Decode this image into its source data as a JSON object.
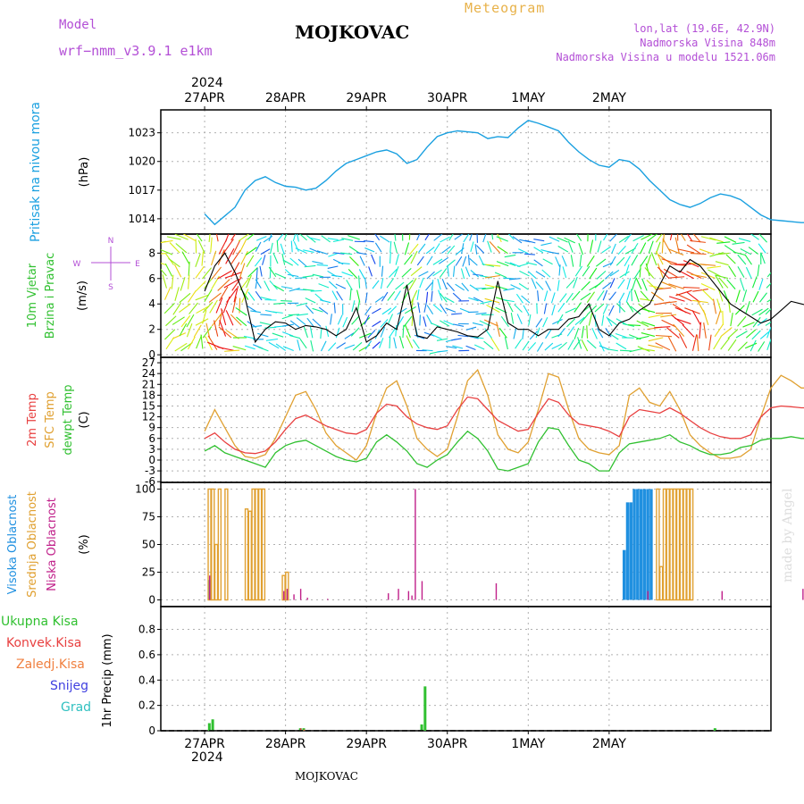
{
  "header": {
    "model_label": "Model",
    "model_name": "wrf−nmm_v3.9.1 e1km",
    "title": "MOJKOVAC",
    "subtitle": "Meteogram",
    "coords": "lon,lat (19.6E, 42.9N)",
    "altitude": "Nadmorska Visina 848m",
    "model_altitude": "Nadmorska Visina u modelu 1521.06m",
    "year": "2024",
    "bottom_title": "MOJKOVAC",
    "credit": "made by Angel"
  },
  "colors": {
    "pressure": "#1aa0e0",
    "wind_speed": "#000000",
    "temp2m": "#e84040",
    "sfc_temp": "#e0a030",
    "dewpoint": "#30c030",
    "cloud_high": "#2090e0",
    "cloud_mid": "#e0a030",
    "cloud_low": "#c0208a",
    "precip_total": "#30c030",
    "precip_conv": "#e84040",
    "precip_frozen": "#f08040",
    "snow": "#4040e0",
    "hail": "#30c0c0"
  },
  "chart_data": [
    {
      "type": "line",
      "panel": "pressure",
      "ylabel": "Pritisak na nivou mora",
      "unit": "(hPa)",
      "ylim": [
        1012.4,
        1025.4
      ],
      "yticks": [
        1014,
        1017,
        1020,
        1023
      ],
      "grid": true,
      "categories": [
        "27APR",
        "28APR",
        "29APR",
        "30APR",
        "1MAY",
        "2MAY"
      ],
      "x": [
        0,
        3,
        6,
        9,
        12,
        15,
        18,
        21,
        24,
        27,
        30,
        33,
        36,
        39,
        42,
        45,
        48,
        51,
        54,
        57,
        60,
        63,
        66,
        69,
        72,
        75,
        78,
        81,
        84,
        87,
        90,
        93,
        96,
        99,
        102,
        105,
        108,
        111,
        114,
        117,
        120,
        123,
        126,
        129,
        132,
        135,
        138,
        141,
        144,
        147,
        150,
        153,
        156,
        159,
        162,
        165,
        168,
        171,
        174,
        177,
        180
      ],
      "values": [
        1014.5,
        1013.4,
        1014.3,
        1015.2,
        1017.0,
        1018.0,
        1018.4,
        1017.8,
        1017.4,
        1017.3,
        1017.0,
        1017.2,
        1018.0,
        1019.0,
        1019.8,
        1020.2,
        1020.6,
        1021.0,
        1021.2,
        1020.8,
        1019.8,
        1020.2,
        1021.5,
        1022.6,
        1023.0,
        1023.2,
        1023.1,
        1023.0,
        1022.4,
        1022.6,
        1022.5,
        1023.5,
        1024.3,
        1024.0,
        1023.6,
        1023.2,
        1022.0,
        1021.0,
        1020.2,
        1019.6,
        1019.4,
        1020.2,
        1020.0,
        1019.2,
        1018.0,
        1017.0,
        1016.0,
        1015.5,
        1015.2,
        1015.6,
        1016.2,
        1016.6,
        1016.4,
        1016.0,
        1015.2,
        1014.4,
        1013.9,
        1013.8,
        1013.7,
        1013.6,
        1013.6
      ]
    },
    {
      "type": "line",
      "panel": "wind",
      "ylabel": "10m Vjetar Brzina i Pravac",
      "unit": "(m/s)",
      "compass": {
        "n": "N",
        "s": "S",
        "w": "W",
        "e": "E"
      },
      "ylim": [
        -0.2,
        9.5
      ],
      "yticks": [
        0,
        2,
        4,
        6,
        8
      ],
      "grid": true,
      "x": [
        0,
        3,
        6,
        9,
        12,
        15,
        18,
        21,
        24,
        27,
        30,
        33,
        36,
        39,
        42,
        45,
        48,
        51,
        54,
        57,
        60,
        63,
        66,
        69,
        72,
        75,
        78,
        81,
        84,
        87,
        90,
        93,
        96,
        99,
        102,
        105,
        108,
        111,
        114,
        117,
        120,
        123,
        126,
        129,
        132,
        135,
        138,
        141,
        144,
        147,
        150,
        153,
        156,
        159,
        162,
        165,
        168,
        171,
        174,
        177,
        180
      ],
      "values": [
        5.0,
        7.0,
        8.0,
        6.5,
        4.5,
        1.0,
        2.0,
        2.6,
        2.5,
        2.0,
        2.3,
        2.2,
        2.0,
        1.5,
        2.0,
        3.7,
        1.0,
        1.5,
        2.5,
        2.0,
        5.5,
        1.5,
        1.3,
        2.2,
        2.0,
        1.8,
        1.5,
        1.4,
        2.0,
        5.8,
        2.5,
        2.0,
        2.0,
        1.5,
        2.0,
        2.0,
        2.8,
        3.0,
        4.0,
        2.0,
        1.5,
        2.5,
        2.8,
        3.5,
        4.0,
        5.5,
        7.0,
        6.5,
        7.5,
        7.0,
        6.0,
        5.0,
        4.0,
        3.5,
        3.0,
        2.5,
        2.8,
        3.5,
        4.2,
        4.0,
        3.8
      ]
    },
    {
      "type": "line",
      "panel": "temperature",
      "ylabels": [
        "2m Temp",
        "SFC Temp",
        "dewpt Temp"
      ],
      "unit": "(C)",
      "ylim": [
        -6.2,
        28.5
      ],
      "yticks": [
        -6,
        -3,
        0,
        3,
        6,
        9,
        12,
        15,
        18,
        21,
        24,
        27
      ],
      "grid": true,
      "x": [
        0,
        3,
        6,
        9,
        12,
        15,
        18,
        21,
        24,
        27,
        30,
        33,
        36,
        39,
        42,
        45,
        48,
        51,
        54,
        57,
        60,
        63,
        66,
        69,
        72,
        75,
        78,
        81,
        84,
        87,
        90,
        93,
        96,
        99,
        102,
        105,
        108,
        111,
        114,
        117,
        120,
        123,
        126,
        129,
        132,
        135,
        138,
        141,
        144,
        147,
        150,
        153,
        156,
        159,
        162,
        165,
        168,
        171,
        174,
        177,
        180
      ],
      "series": [
        {
          "name": "2m Temp",
          "values": [
            6.0,
            7.5,
            5.0,
            3.0,
            2.0,
            1.8,
            2.5,
            5.0,
            8.5,
            11.5,
            12.5,
            11.0,
            9.5,
            8.5,
            7.5,
            7.2,
            8.5,
            13.0,
            15.5,
            15.0,
            12.0,
            10.0,
            9.0,
            8.5,
            9.5,
            14.0,
            17.5,
            17.0,
            14.0,
            11.0,
            9.5,
            8.0,
            8.5,
            13.0,
            17.0,
            16.0,
            12.5,
            10.0,
            9.5,
            9.0,
            8.0,
            6.5,
            12.0,
            14.0,
            13.5,
            13.0,
            14.5,
            13.0,
            11.0,
            9.0,
            7.5,
            6.5,
            6.0,
            6.0,
            7.0,
            12.0,
            14.5,
            15.0,
            14.8,
            14.5,
            14.5
          ]
        },
        {
          "name": "SFC Temp",
          "values": [
            8.0,
            14.0,
            9.0,
            4.0,
            1.0,
            0.5,
            1.5,
            6.0,
            12.0,
            18.0,
            19.0,
            14.0,
            7.5,
            4.0,
            2.0,
            0.0,
            4.0,
            13.0,
            20.0,
            22.0,
            15.0,
            6.0,
            3.0,
            1.0,
            3.0,
            12.0,
            22.0,
            25.0,
            18.0,
            7.0,
            3.0,
            2.0,
            5.0,
            14.0,
            24.0,
            23.0,
            14.0,
            6.0,
            3.0,
            2.0,
            1.5,
            4.0,
            18.0,
            20.0,
            16.0,
            15.0,
            19.0,
            14.0,
            7.0,
            4.0,
            2.0,
            0.5,
            0.5,
            1.0,
            3.0,
            12.0,
            20.0,
            23.5,
            22.0,
            20.0,
            20.0
          ]
        },
        {
          "name": "dewpt Temp",
          "values": [
            2.5,
            4.0,
            2.0,
            1.0,
            0.0,
            -1.0,
            -2.0,
            2.0,
            4.0,
            5.0,
            5.5,
            4.0,
            2.5,
            1.0,
            0.0,
            -0.5,
            0.5,
            5.0,
            7.0,
            5.0,
            2.5,
            -1.0,
            -2.0,
            0.0,
            1.5,
            5.0,
            8.0,
            6.0,
            2.5,
            -2.5,
            -3.0,
            -2.0,
            -1.0,
            5.0,
            9.0,
            8.5,
            4.0,
            0.0,
            -1.0,
            -3.0,
            -3.0,
            2.0,
            4.5,
            5.0,
            5.5,
            6.0,
            7.0,
            5.0,
            4.0,
            2.5,
            1.5,
            1.5,
            2.0,
            3.5,
            4.0,
            5.5,
            6.0,
            6.0,
            6.5,
            6.0,
            6.0
          ]
        }
      ]
    },
    {
      "type": "bar",
      "panel": "clouds",
      "ylabels": [
        "Visoka Oblacnost",
        "Srednja Oblacnost",
        "Niska Oblacnost"
      ],
      "unit": "(%)",
      "ylim": [
        -6,
        106
      ],
      "yticks": [
        0,
        25,
        50,
        75,
        100
      ],
      "grid": true,
      "bar_hours": [
        1,
        2,
        3,
        4,
        5,
        6,
        7,
        8,
        12,
        13,
        14,
        15,
        16,
        17,
        18,
        19,
        23,
        24,
        25,
        26,
        28,
        30,
        36,
        54,
        57,
        60,
        61,
        62,
        64,
        86,
        124,
        125,
        126,
        127,
        128,
        129,
        130,
        131,
        132,
        133,
        134,
        135,
        136,
        137,
        138,
        139,
        140,
        141,
        142,
        143,
        144,
        153,
        154,
        177,
        178
      ],
      "series": [
        {
          "name": "Visoka Oblacnost",
          "values": [
            18,
            0,
            0,
            0,
            0,
            0,
            0,
            0,
            0,
            0,
            0,
            0,
            0,
            0,
            0,
            0,
            0,
            0,
            0,
            0,
            0,
            0,
            0,
            0,
            0,
            0,
            0,
            0,
            0,
            0,
            45,
            88,
            88,
            100,
            100,
            100,
            100,
            100,
            100,
            0,
            0,
            0,
            0,
            0,
            0,
            0,
            0,
            0,
            0,
            0,
            0,
            0,
            0,
            0,
            0
          ]
        },
        {
          "name": "Srednja Oblacnost",
          "values": [
            100,
            100,
            50,
            100,
            0,
            100,
            0,
            0,
            82,
            80,
            100,
            100,
            100,
            100,
            0,
            0,
            22,
            25,
            0,
            0,
            0,
            0,
            0,
            0,
            0,
            0,
            0,
            0,
            0,
            0,
            0,
            0,
            0,
            0,
            0,
            0,
            0,
            0,
            0,
            0,
            100,
            30,
            100,
            100,
            100,
            100,
            100,
            100,
            100,
            100,
            100,
            0,
            0,
            0,
            0
          ]
        },
        {
          "name": "Niska Oblacnost",
          "values": [
            22,
            0,
            0,
            0,
            0,
            0,
            0,
            0,
            0,
            0,
            0,
            0,
            0,
            0,
            0,
            0,
            8,
            10,
            0,
            5,
            10,
            2,
            1,
            6,
            10,
            8,
            4,
            100,
            17,
            15,
            0,
            0,
            0,
            0,
            0,
            0,
            0,
            8,
            0,
            0,
            0,
            0,
            0,
            0,
            0,
            0,
            0,
            0,
            0,
            0,
            0,
            8,
            0,
            10,
            10
          ]
        }
      ]
    },
    {
      "type": "bar",
      "panel": "precip",
      "ylabel": "1hr Precip",
      "unit": "(mm)",
      "ylim": [
        0,
        0.98
      ],
      "yticks": [
        0,
        0.2,
        0.4,
        0.6,
        0.8
      ],
      "grid": true,
      "legend": [
        "Ukupna Kisa",
        "Konvek.Kisa",
        "Zaledj.Kisa",
        "Snijeg",
        "Grad"
      ],
      "bar_hours": [
        1,
        2,
        28,
        29,
        64,
        65,
        151
      ],
      "series": [
        {
          "name": "Ukupna Kisa",
          "values": [
            0.06,
            0.09,
            0.02,
            0.02,
            0.05,
            0.35,
            0.02
          ]
        },
        {
          "name": "Konvek.Kisa",
          "values": [
            0,
            0,
            0.02,
            0.01,
            0,
            0,
            0
          ]
        }
      ]
    }
  ]
}
